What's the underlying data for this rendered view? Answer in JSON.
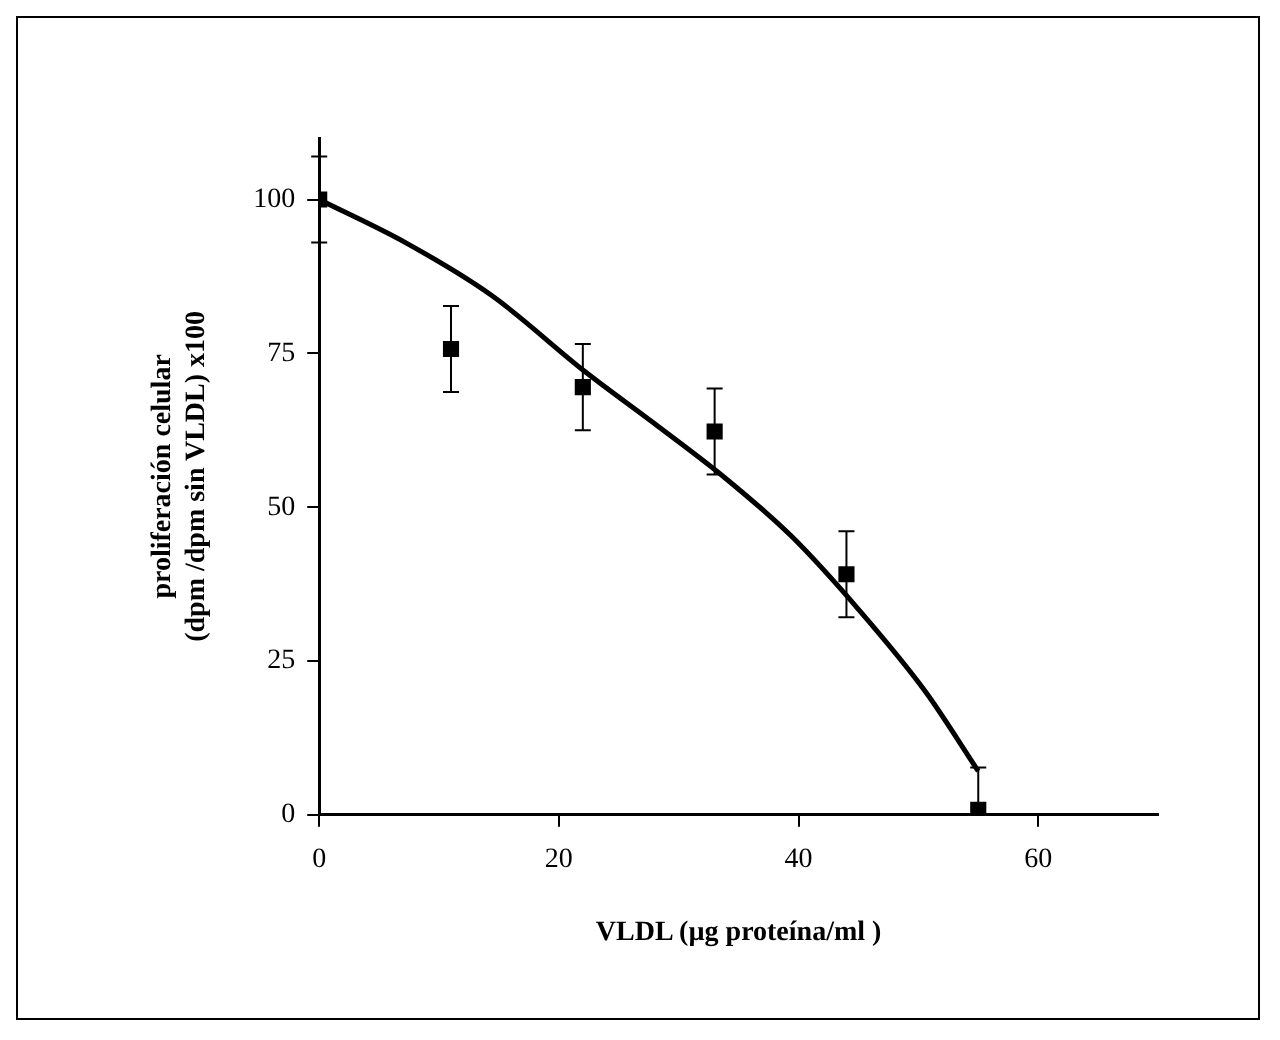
{
  "chart_data": {
    "type": "scatter",
    "xlabel": "VLDL (µg proteína/ml )",
    "ylabel": "proliferación celular\n(dpm /dpm sin VLDL) x100",
    "xlim": [
      0,
      70
    ],
    "xticks": [
      0,
      20,
      40,
      60
    ],
    "ylim": [
      0,
      110
    ],
    "yticks": [
      0,
      25,
      50,
      75,
      100
    ],
    "grid": false,
    "legend": false,
    "series": [
      {
        "color": "#000000",
        "marker": "square",
        "x": [
          0,
          11,
          22,
          33,
          44,
          55
        ],
        "values": [
          100,
          75.7,
          69.5,
          62.3,
          39.1,
          0.8
        ],
        "errors": [
          7,
          7,
          7,
          7,
          7,
          [
            0,
            7.7
          ]
        ]
      },
      {
        "type": "line",
        "color": "#000000",
        "marker": "none",
        "line_style": "solid",
        "x": [
          0,
          7.2,
          14.4,
          22.2,
          28.3,
          33.9,
          39.4,
          45,
          50.6,
          55
        ],
        "values": [
          100,
          93,
          84.4,
          72,
          63.1,
          54.7,
          45.3,
          33.4,
          20,
          7.1
        ]
      }
    ]
  }
}
